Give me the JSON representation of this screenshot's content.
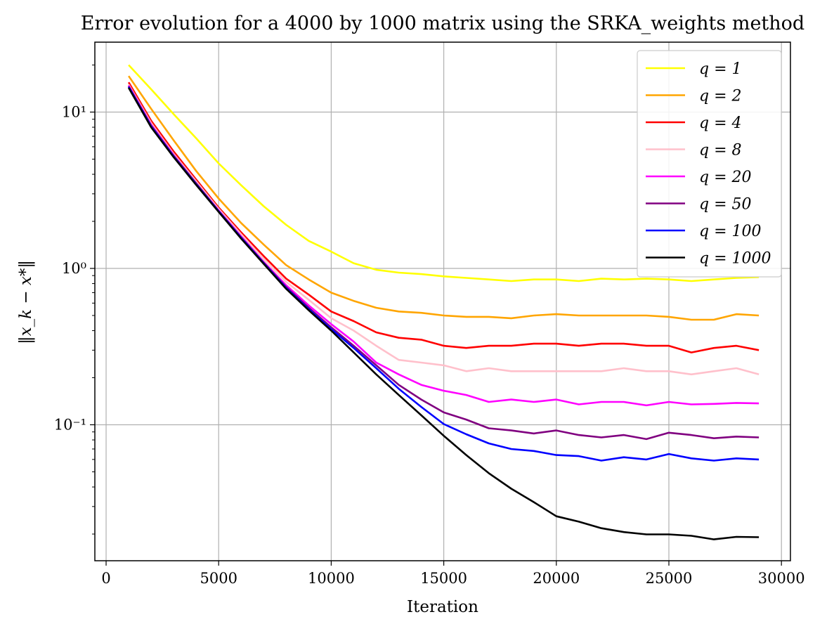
{
  "chart_data": {
    "type": "line",
    "title": "Error evolution for a 4000 by 1000 matrix using the SRKA_weights method",
    "xlabel": "Iteration",
    "ylabel": "‖x_k − x*‖",
    "xlim": [
      -500,
      30400
    ],
    "ylim": [
      0.0135,
      28
    ],
    "yscale": "log",
    "grid": true,
    "legend_position": "top-right",
    "x_ticks": [
      0,
      5000,
      10000,
      15000,
      20000,
      25000,
      30000
    ],
    "x_tick_labels": [
      "0",
      "5000",
      "10000",
      "15000",
      "20000",
      "25000",
      "30000"
    ],
    "y_ticks": [
      0.1,
      1,
      10
    ],
    "y_tick_labels": [
      "10⁻¹",
      "10⁰",
      "10¹"
    ],
    "x": [
      1000,
      2000,
      3000,
      4000,
      5000,
      6000,
      7000,
      8000,
      9000,
      10000,
      11000,
      12000,
      13000,
      14000,
      15000,
      16000,
      17000,
      18000,
      19000,
      20000,
      21000,
      22000,
      23000,
      24000,
      25000,
      26000,
      27000,
      28000,
      29000
    ],
    "series": [
      {
        "name": "q = 1",
        "color": "#ffff00",
        "values": [
          20.0,
          14.0,
          9.7,
          6.8,
          4.7,
          3.4,
          2.5,
          1.9,
          1.5,
          1.28,
          1.08,
          0.98,
          0.94,
          0.92,
          0.89,
          0.87,
          0.85,
          0.83,
          0.85,
          0.85,
          0.83,
          0.86,
          0.85,
          0.86,
          0.85,
          0.83,
          0.85,
          0.87,
          0.88
        ]
      },
      {
        "name": "q = 2",
        "color": "#ffa500",
        "values": [
          17.0,
          10.5,
          6.6,
          4.2,
          2.8,
          1.95,
          1.42,
          1.05,
          0.85,
          0.7,
          0.62,
          0.56,
          0.53,
          0.52,
          0.5,
          0.49,
          0.49,
          0.48,
          0.5,
          0.51,
          0.5,
          0.5,
          0.5,
          0.5,
          0.49,
          0.47,
          0.47,
          0.51,
          0.5
        ]
      },
      {
        "name": "q = 4",
        "color": "#ff0000",
        "values": [
          15.5,
          8.8,
          5.6,
          3.7,
          2.45,
          1.7,
          1.2,
          0.86,
          0.68,
          0.53,
          0.46,
          0.39,
          0.36,
          0.35,
          0.32,
          0.31,
          0.32,
          0.32,
          0.33,
          0.33,
          0.32,
          0.33,
          0.33,
          0.32,
          0.32,
          0.29,
          0.31,
          0.32,
          0.3
        ]
      },
      {
        "name": "q = 8",
        "color": "#ffc0cb",
        "values": [
          15.0,
          8.5,
          5.4,
          3.6,
          2.4,
          1.65,
          1.15,
          0.82,
          0.63,
          0.48,
          0.4,
          0.32,
          0.26,
          0.25,
          0.24,
          0.22,
          0.23,
          0.22,
          0.22,
          0.22,
          0.22,
          0.22,
          0.23,
          0.22,
          0.22,
          0.21,
          0.22,
          0.23,
          0.21
        ]
      },
      {
        "name": "q = 20",
        "color": "#ff00ff",
        "values": [
          14.8,
          8.3,
          5.3,
          3.5,
          2.35,
          1.6,
          1.1,
          0.78,
          0.58,
          0.44,
          0.34,
          0.25,
          0.21,
          0.18,
          0.165,
          0.155,
          0.14,
          0.145,
          0.14,
          0.145,
          0.135,
          0.14,
          0.14,
          0.133,
          0.14,
          0.135,
          0.136,
          0.138,
          0.137
        ]
      },
      {
        "name": "q = 50",
        "color": "#800080",
        "values": [
          14.6,
          8.2,
          5.25,
          3.5,
          2.33,
          1.58,
          1.09,
          0.76,
          0.56,
          0.42,
          0.32,
          0.24,
          0.18,
          0.145,
          0.12,
          0.108,
          0.095,
          0.092,
          0.088,
          0.092,
          0.086,
          0.083,
          0.086,
          0.081,
          0.089,
          0.086,
          0.082,
          0.084,
          0.083
        ]
      },
      {
        "name": "q = 100",
        "color": "#0000ff",
        "values": [
          14.5,
          8.1,
          5.2,
          3.45,
          2.32,
          1.57,
          1.08,
          0.75,
          0.55,
          0.41,
          0.31,
          0.23,
          0.17,
          0.13,
          0.101,
          0.087,
          0.076,
          0.07,
          0.068,
          0.064,
          0.063,
          0.059,
          0.062,
          0.06,
          0.065,
          0.061,
          0.059,
          0.061,
          0.06
        ]
      },
      {
        "name": "q = 1000",
        "color": "#000000",
        "values": [
          14.3,
          8.0,
          5.15,
          3.42,
          2.3,
          1.55,
          1.07,
          0.74,
          0.54,
          0.4,
          0.29,
          0.21,
          0.155,
          0.115,
          0.085,
          0.064,
          0.049,
          0.039,
          0.032,
          0.026,
          0.024,
          0.0218,
          0.0206,
          0.0199,
          0.0199,
          0.0195,
          0.0185,
          0.0192,
          0.0191
        ]
      }
    ]
  }
}
